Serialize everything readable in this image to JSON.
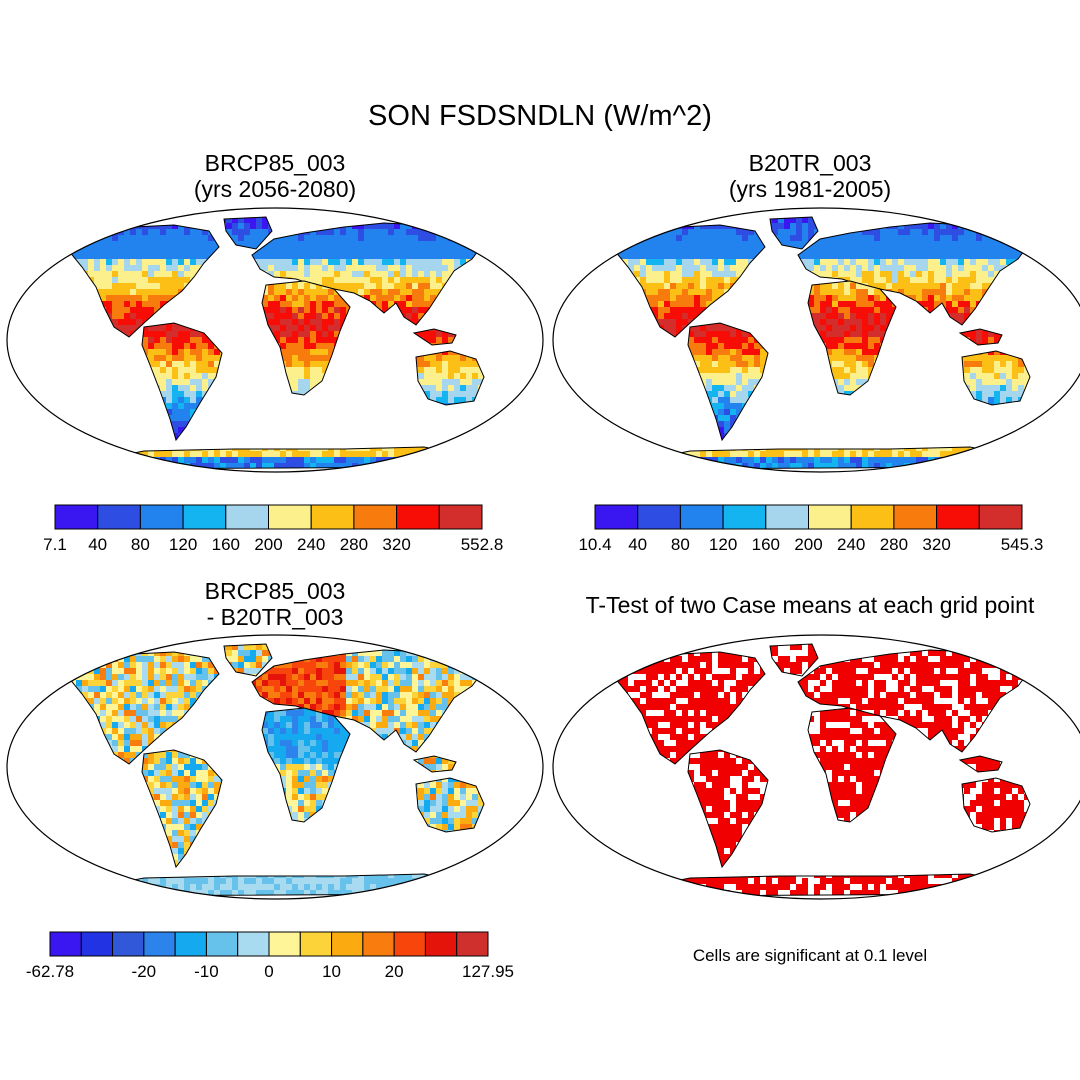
{
  "title": "SON FSDSNDLN (W/m^2)",
  "panels": [
    {
      "title_line1": "BRCP85_003",
      "title_line2": "(yrs 2056-2080)",
      "colorbar": {
        "colors": [
          "#3a17f0",
          "#2e4ee3",
          "#2282ee",
          "#14b4f0",
          "#a6d6ee",
          "#fbf08c",
          "#fbbf16",
          "#f77c0d",
          "#f80d06",
          "#d32e2c"
        ],
        "labels": [
          "7.1",
          "40",
          "80",
          "120",
          "160",
          "200",
          "240",
          "280",
          "320",
          "552.8"
        ]
      }
    },
    {
      "title_line1": "B20TR_003",
      "title_line2": "(yrs 1981-2005)",
      "colorbar": {
        "colors": [
          "#3a17f0",
          "#2e4ee3",
          "#2282ee",
          "#14b4f0",
          "#a6d6ee",
          "#fbf08c",
          "#fbbf16",
          "#f77c0d",
          "#f80d06",
          "#d32e2c"
        ],
        "labels": [
          "10.4",
          "40",
          "80",
          "120",
          "160",
          "200",
          "240",
          "280",
          "320",
          "545.3"
        ]
      }
    },
    {
      "title_line1": "BRCP85_003",
      "title_line2": "- B20TR_003",
      "colorbar": {
        "colors": [
          "#3a17f0",
          "#2233e4",
          "#3158d8",
          "#2c83ec",
          "#15aaf0",
          "#66c2ea",
          "#a9dbf0",
          "#fdf598",
          "#fdd33a",
          "#fbab10",
          "#f87c0e",
          "#f7450b",
          "#e5140b",
          "#cf302d"
        ],
        "labels": [
          "-62.78",
          "-20",
          "-10",
          "0",
          "10",
          "20",
          "127.95"
        ],
        "label_bins": [
          0,
          3,
          5,
          7,
          9,
          11,
          14
        ]
      }
    },
    {
      "title": "T-Test of two Case means at each grid point",
      "note": "Cells are significant at 0.1 level",
      "significant_color": "#f00000"
    }
  ]
}
